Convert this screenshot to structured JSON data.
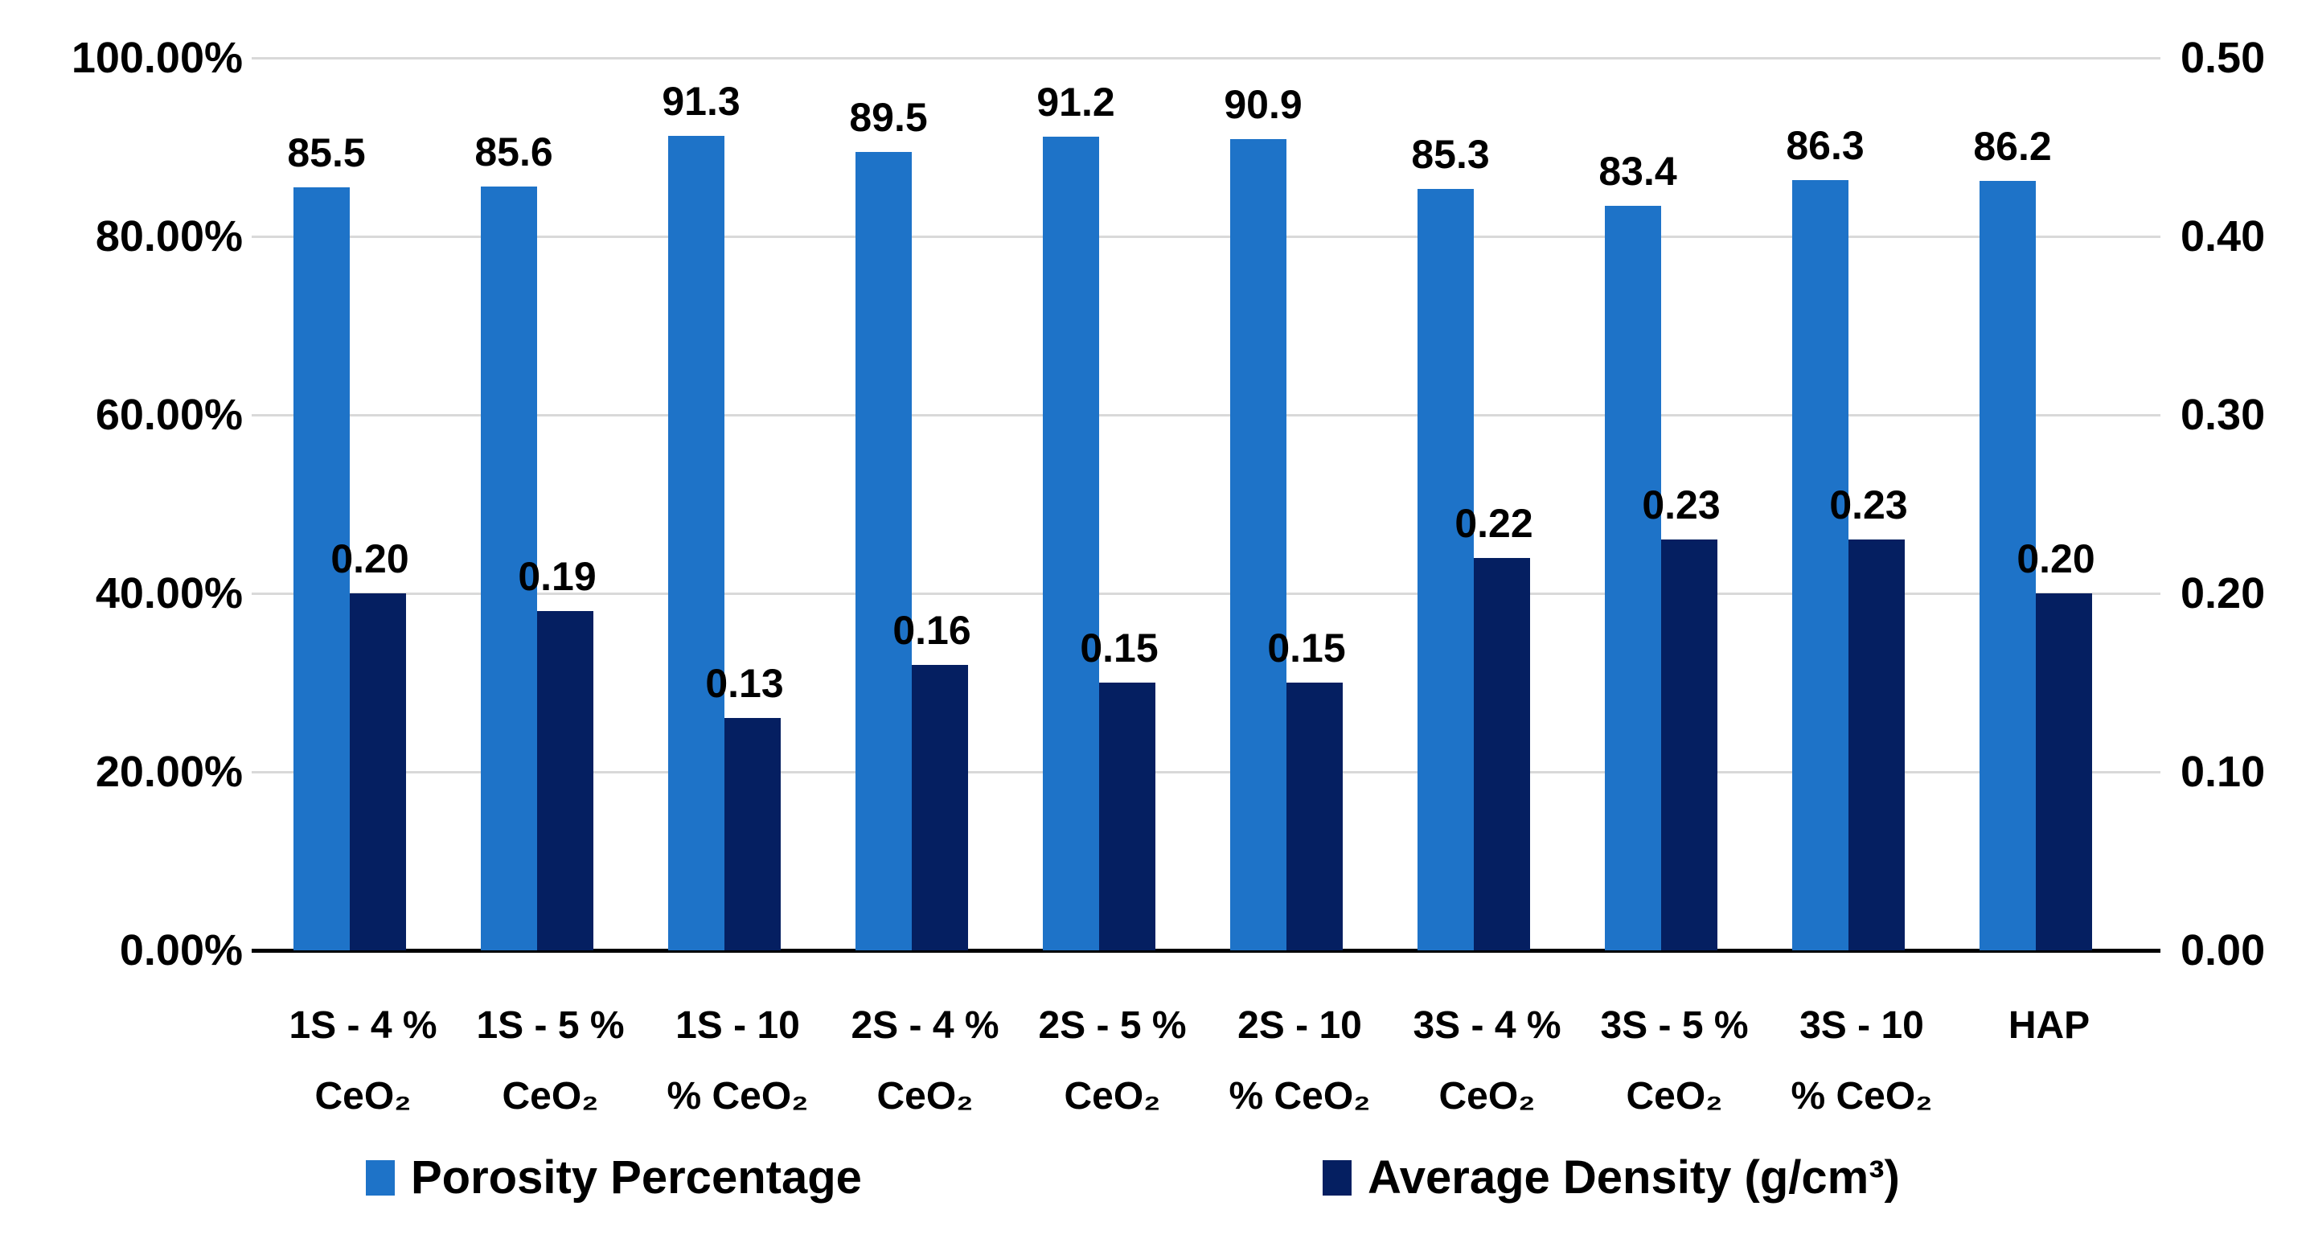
{
  "chart_data": {
    "type": "bar",
    "title": "",
    "categories": [
      "1S - 4 % CeO₂",
      "1S - 5 % CeO₂",
      "1S - 10 % CeO₂",
      "2S - 4 % CeO₂",
      "2S - 5 % CeO₂",
      "2S - 10 % CeO₂",
      "3S - 4 % CeO₂",
      "3S - 5 % CeO₂",
      "3S - 10 % CeO₂",
      "HAP"
    ],
    "category_lines": [
      [
        "1S - 4 %",
        "CeO₂"
      ],
      [
        "1S - 5 %",
        "CeO₂"
      ],
      [
        "1S - 10",
        "% CeO₂"
      ],
      [
        "2S - 4 %",
        "CeO₂"
      ],
      [
        "2S - 5 %",
        "CeO₂"
      ],
      [
        "2S - 10",
        "% CeO₂"
      ],
      [
        "3S - 4 %",
        "CeO₂"
      ],
      [
        "3S - 5 %",
        "CeO₂"
      ],
      [
        "3S - 10",
        "% CeO₂"
      ],
      [
        "HAP",
        ""
      ]
    ],
    "series": [
      {
        "name": "Porosity Percentage",
        "axis": "left",
        "color": "#1E73C8",
        "values": [
          85.5,
          85.6,
          91.3,
          89.5,
          91.2,
          90.9,
          85.3,
          83.4,
          86.3,
          86.2
        ],
        "labels": [
          "85.5",
          "85.6",
          "91.3",
          "89.5",
          "91.2",
          "90.9",
          "85.3",
          "83.4",
          "86.3",
          "86.2"
        ]
      },
      {
        "name": "Average Density (g/cm³)",
        "axis": "right",
        "color": "#051F61",
        "values": [
          0.2,
          0.19,
          0.13,
          0.16,
          0.15,
          0.15,
          0.22,
          0.23,
          0.23,
          0.2
        ],
        "labels": [
          "0.20",
          "0.19",
          "0.13",
          "0.16",
          "0.15",
          "0.15",
          "0.22",
          "0.23",
          "0.23",
          "0.20"
        ]
      }
    ],
    "left_axis": {
      "ticks": [
        "100.00%",
        "80.00%",
        "60.00%",
        "40.00%",
        "20.00%",
        "0.00%"
      ],
      "min": 0,
      "max": 100
    },
    "right_axis": {
      "ticks": [
        "0.50",
        "0.40",
        "0.30",
        "0.20",
        "0.10",
        "0.00"
      ],
      "min": 0,
      "max": 0.5
    },
    "grid": true,
    "legend_position": "bottom",
    "colors": {
      "gridline": "#D9D9D9",
      "axis_line": "#000000",
      "text": "#000000",
      "background": "#FFFFFF"
    }
  }
}
